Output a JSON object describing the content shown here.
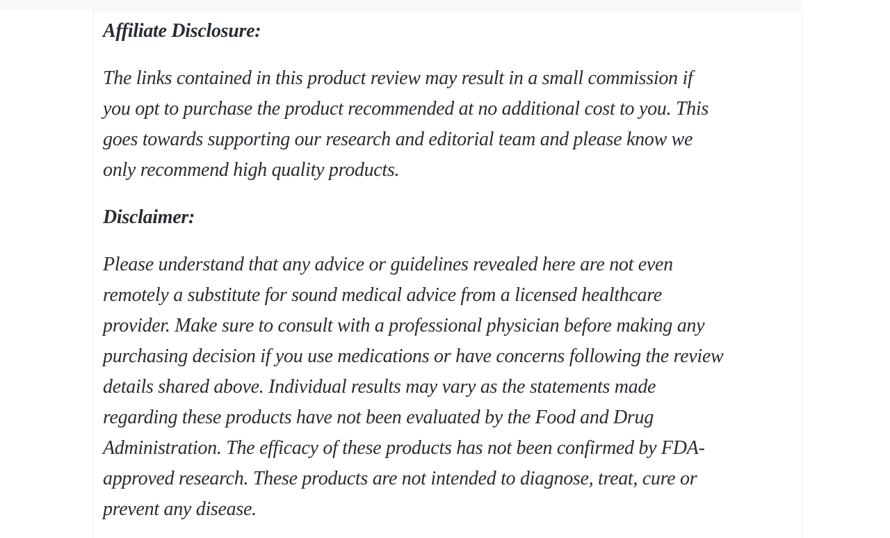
{
  "page": {
    "background_color": "#ffffff",
    "top_strip_color": "#f9f9f9",
    "card_border_color": "#efefef",
    "text_color": "#292d31"
  },
  "article": {
    "sections": [
      {
        "heading": "Affiliate Disclosure:",
        "body": "The links contained in this product review may result in a small commission if\nyou opt to purchase the product recommended at no additional cost to you. This\ngoes towards supporting our research and editorial team and please know we\nonly recommend high quality products."
      },
      {
        "heading": "Disclaimer:",
        "body": "Please understand that any advice or guidelines revealed here are not even\nremotely a substitute for sound medical advice from a licensed healthcare\nprovider. Make sure to consult with a professional physician before making any\npurchasing decision if you use medications or have concerns following the review\ndetails shared above. Individual results may vary as the statements made\nregarding these products have not been evaluated by the Food and Drug\nAdministration. The efficacy of these products has not been confirmed by FDA-\napproved research. These products are not intended to diagnose, treat, cure or\nprevent any disease."
      }
    ]
  }
}
